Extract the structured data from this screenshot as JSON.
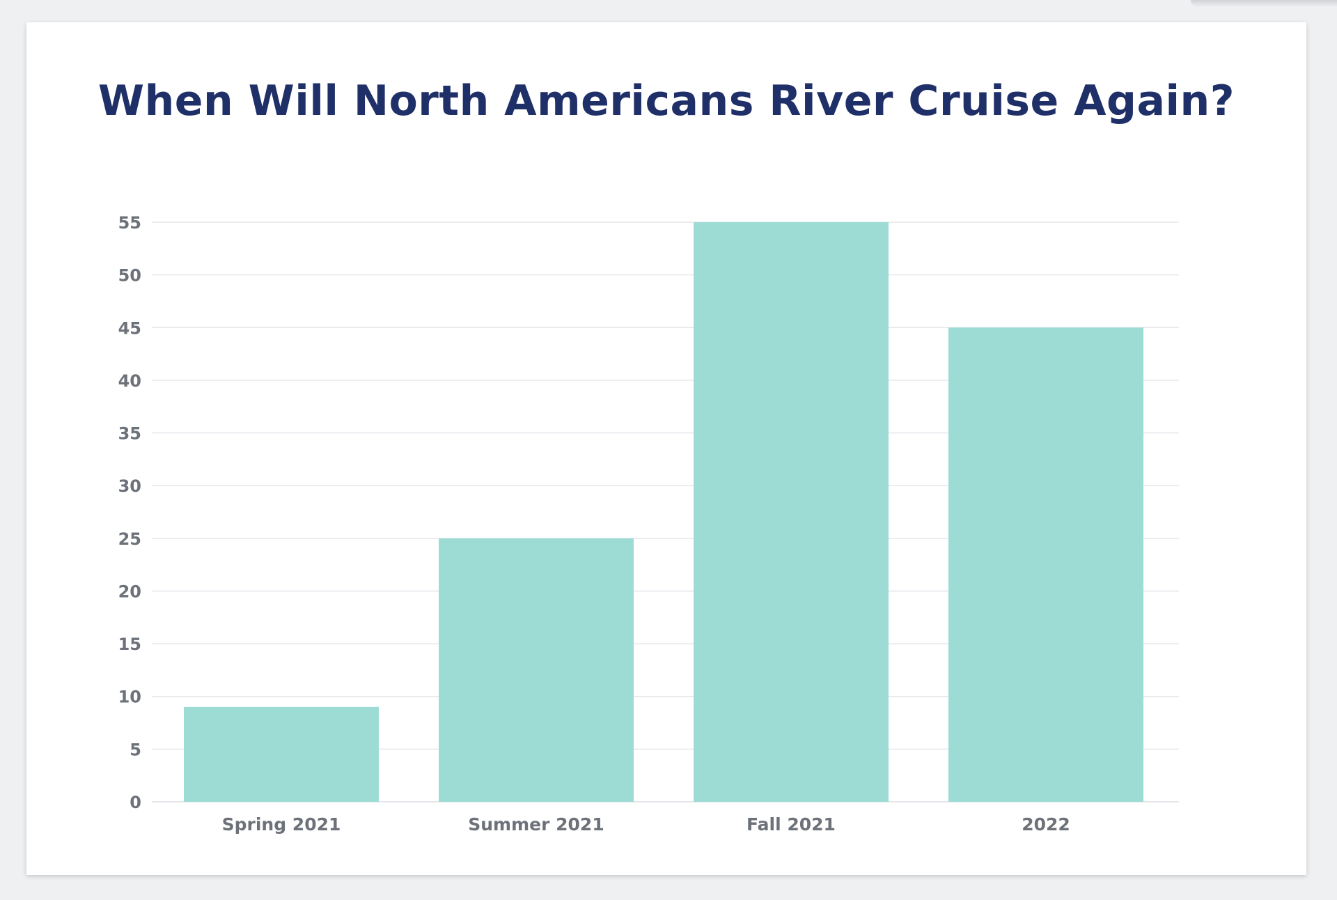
{
  "chart_data": {
    "type": "bar",
    "title": "When Will North Americans River Cruise Again?",
    "categories": [
      "Spring 2021",
      "Summer 2021",
      "Fall 2021",
      "2022"
    ],
    "values": [
      9,
      25,
      55,
      45
    ],
    "xlabel": "",
    "ylabel": "",
    "ylim": [
      0,
      55
    ],
    "yticks": [
      0,
      5,
      10,
      15,
      20,
      25,
      30,
      35,
      40,
      45,
      50,
      55
    ],
    "grid": true,
    "legend": "none",
    "bar_color": "#9ddcd4",
    "grid_color": "#e3e6ea",
    "title_color": "#1f2f67",
    "label_color": "#6d7179"
  }
}
